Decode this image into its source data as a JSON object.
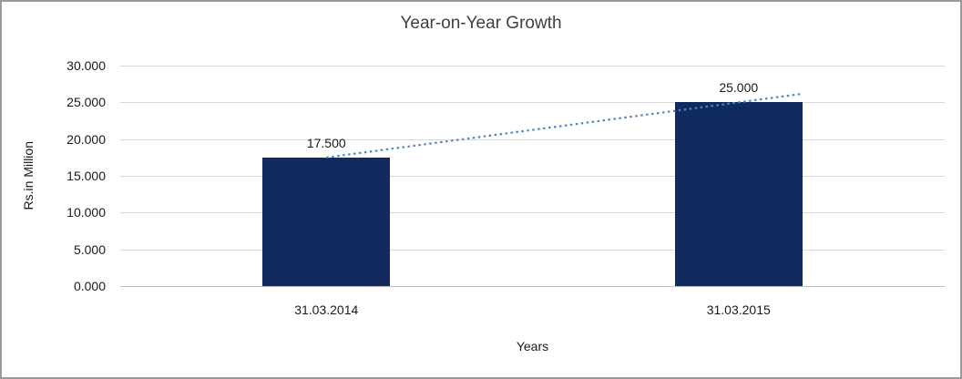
{
  "chart_data": {
    "type": "bar",
    "title": "Year-on-Year Growth",
    "xlabel": "Years",
    "ylabel": "Rs.in Million",
    "categories": [
      "31.03.2014",
      "31.03.2015"
    ],
    "values": [
      17.5,
      25.0
    ],
    "value_labels": [
      "17.500",
      "25.000"
    ],
    "yticks": [
      "30.000",
      "25.000",
      "20.000",
      "15.000",
      "10.000",
      "5.000",
      "0.000"
    ],
    "ylim": [
      0,
      30
    ],
    "grid": true,
    "legend": "none",
    "bar_color": "#112a60",
    "trendline_color": "#4f86c6",
    "trendline_style": "dotted"
  }
}
